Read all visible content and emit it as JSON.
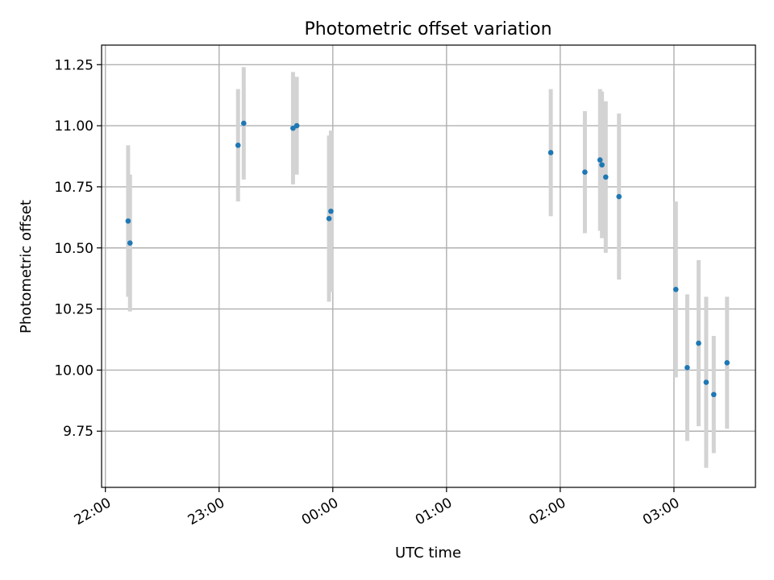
{
  "chart_data": {
    "type": "scatter",
    "title": "Photometric offset variation",
    "xlabel": "UTC time",
    "ylabel": "Photometric offset",
    "x_tick_labels": [
      "22:00",
      "23:00",
      "00:00",
      "01:00",
      "02:00",
      "03:00"
    ],
    "y_tick_labels": [
      "9.75",
      "10.00",
      "10.25",
      "10.50",
      "10.75",
      "11.00",
      "11.25"
    ],
    "xlim": [
      "21:58",
      "03:43"
    ],
    "ylim": [
      9.52,
      11.33
    ],
    "grid": true,
    "marker_color": "#1f77b4",
    "errorbar_color": "#d3d3d3",
    "points": [
      {
        "t": "22:12",
        "y": 10.61,
        "err": 0.31
      },
      {
        "t": "22:13",
        "y": 10.52,
        "err": 0.28
      },
      {
        "t": "23:10",
        "y": 10.92,
        "err": 0.23
      },
      {
        "t": "23:13",
        "y": 11.01,
        "err": 0.23
      },
      {
        "t": "23:39",
        "y": 10.99,
        "err": 0.23
      },
      {
        "t": "23:41",
        "y": 11.0,
        "err": 0.2
      },
      {
        "t": "23:58",
        "y": 10.62,
        "err": 0.34
      },
      {
        "t": "23:59",
        "y": 10.65,
        "err": 0.33
      },
      {
        "t": "01:55",
        "y": 10.89,
        "err": 0.26
      },
      {
        "t": "02:13",
        "y": 10.81,
        "err": 0.25
      },
      {
        "t": "02:21",
        "y": 10.86,
        "err": 0.29
      },
      {
        "t": "02:22",
        "y": 10.84,
        "err": 0.3
      },
      {
        "t": "02:24",
        "y": 10.79,
        "err": 0.31
      },
      {
        "t": "02:31",
        "y": 10.71,
        "err": 0.34
      },
      {
        "t": "03:01",
        "y": 10.33,
        "err": 0.36
      },
      {
        "t": "03:07",
        "y": 10.01,
        "err": 0.3
      },
      {
        "t": "03:13",
        "y": 10.11,
        "err": 0.34
      },
      {
        "t": "03:17",
        "y": 9.95,
        "err": 0.35
      },
      {
        "t": "03:21",
        "y": 9.9,
        "err": 0.24
      },
      {
        "t": "03:28",
        "y": 10.03,
        "err": 0.27
      }
    ]
  }
}
